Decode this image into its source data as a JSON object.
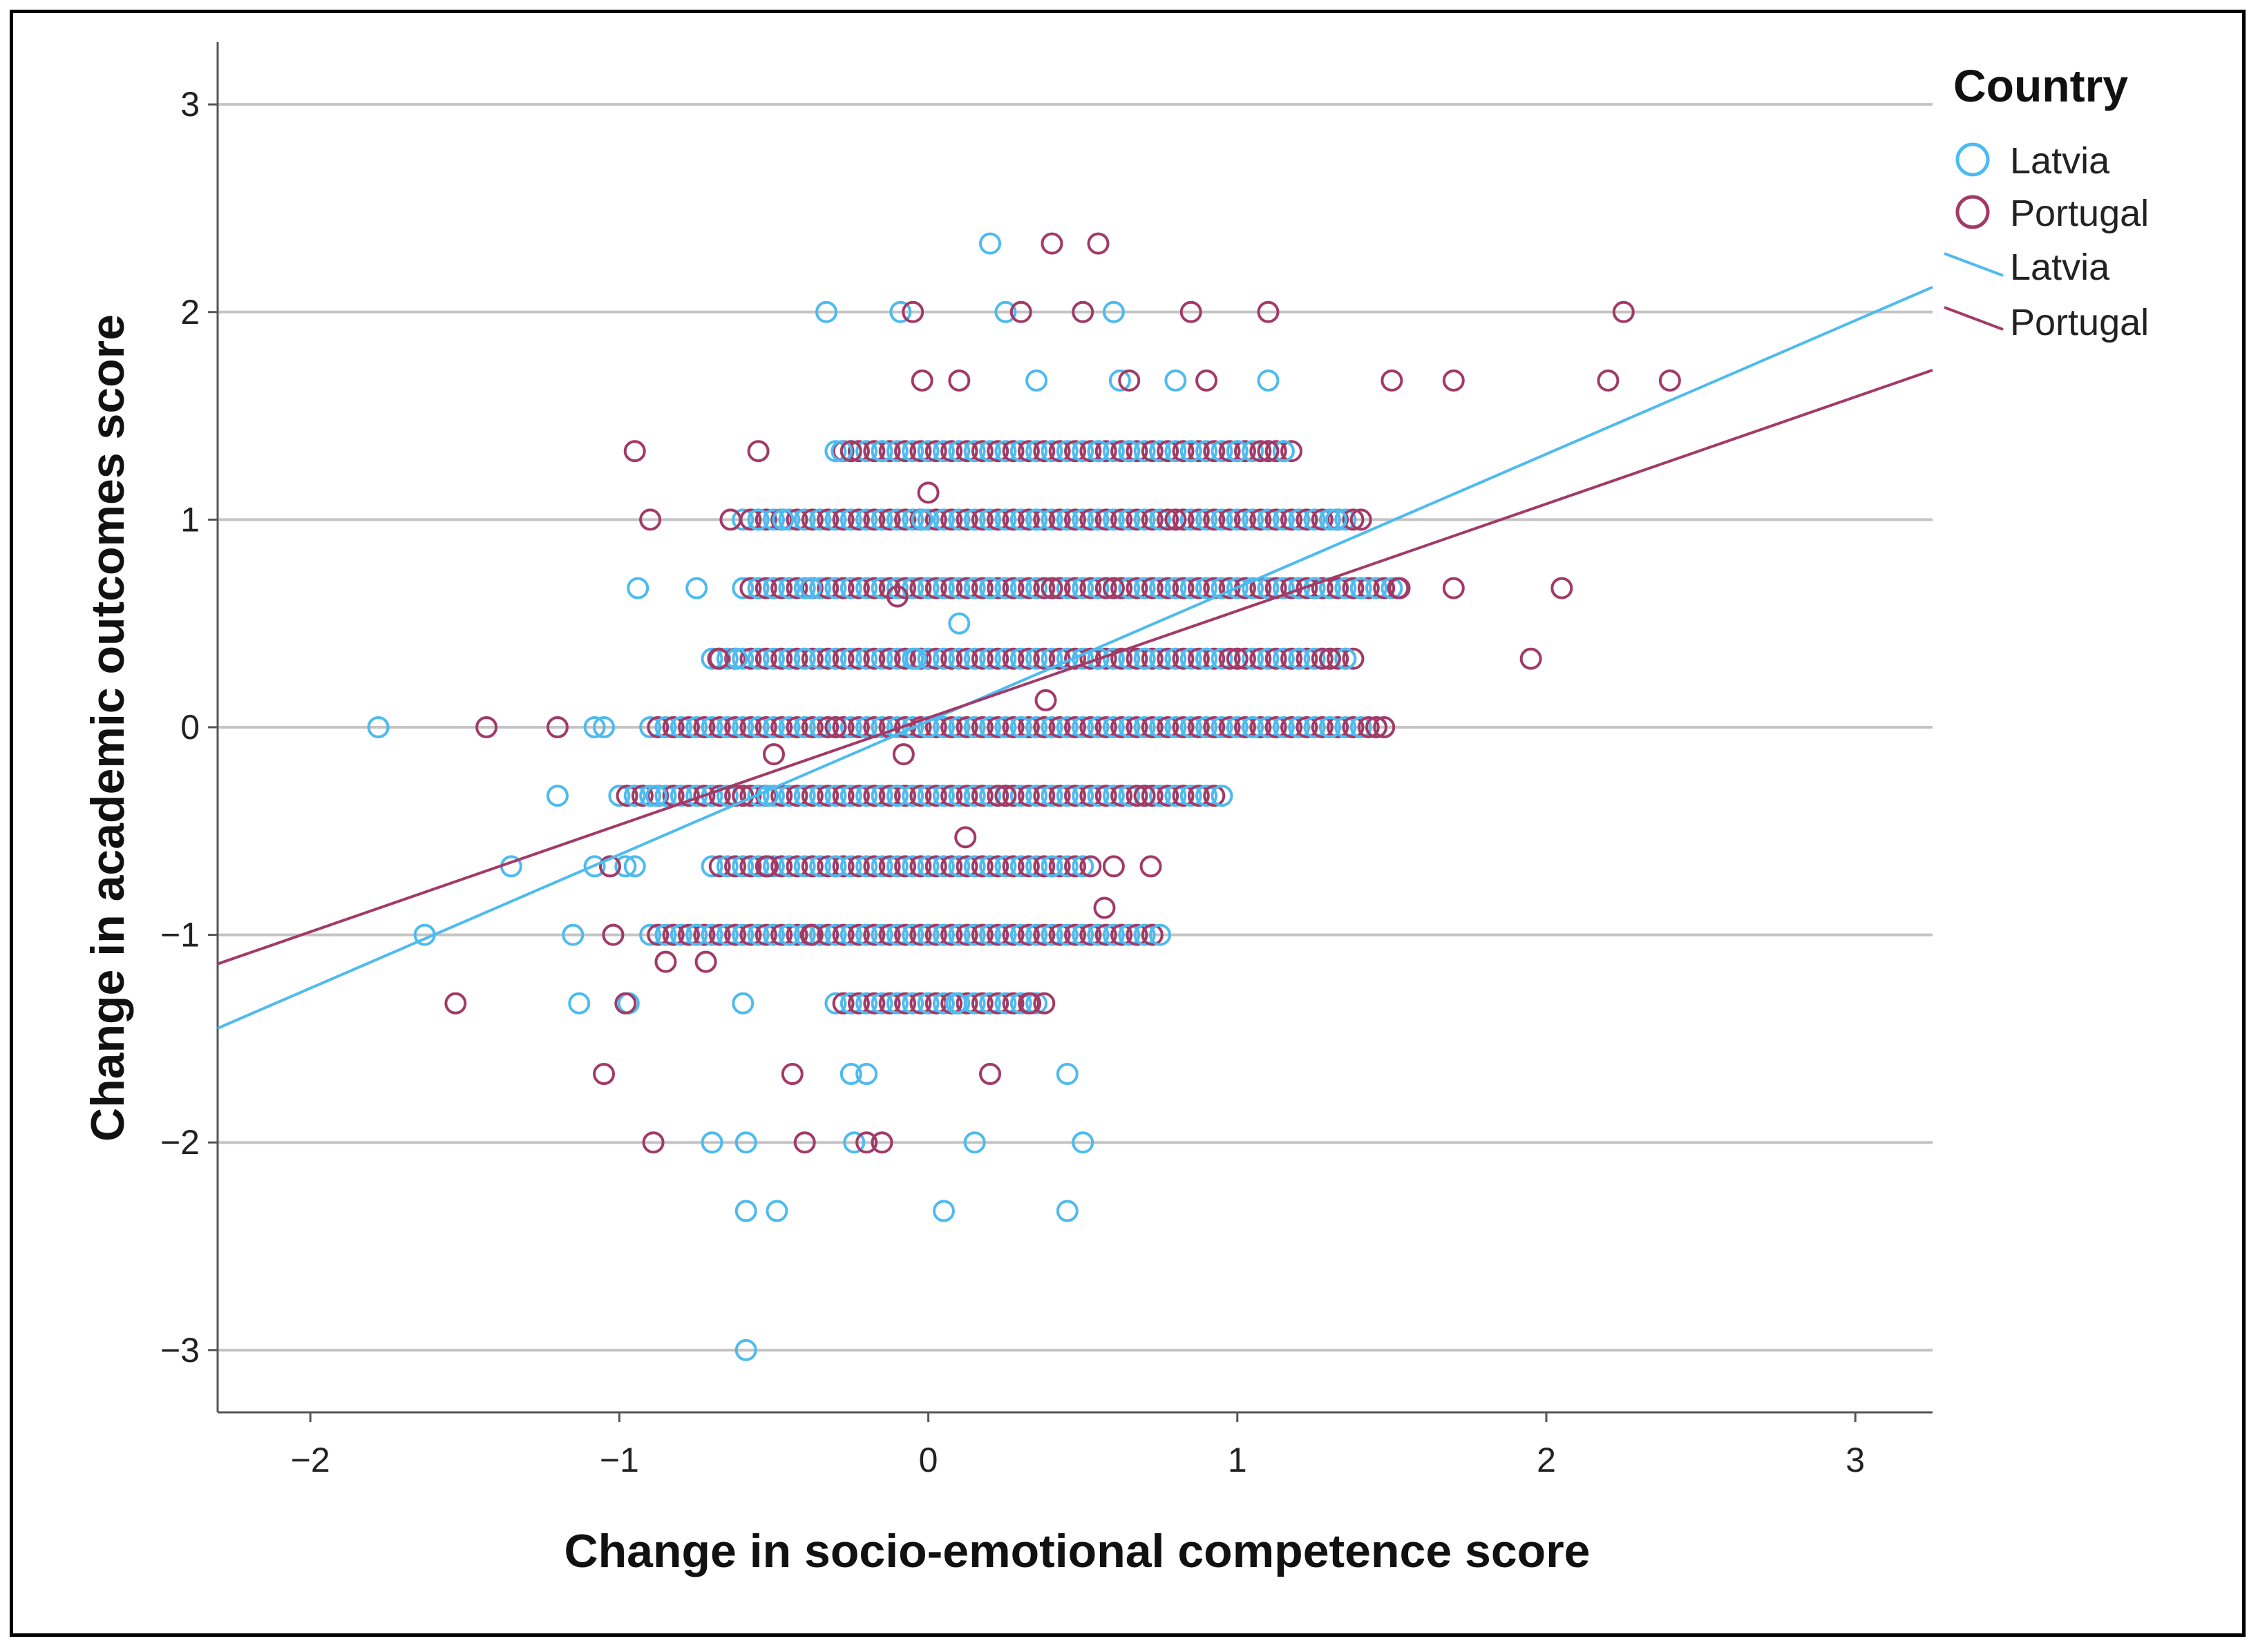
{
  "chart_data": {
    "type": "scatter",
    "title": "",
    "xlabel": "Change in socio-emotional competence score",
    "ylabel": "Change in academic outcomes score",
    "xlim": [
      -2.3,
      3.25
    ],
    "ylim": [
      -3.3,
      3.3
    ],
    "xticks": [
      -2,
      -1,
      0,
      1,
      2,
      3
    ],
    "yticks": [
      -3,
      -2,
      -1,
      0,
      1,
      2,
      3
    ],
    "tick_labels_x": [
      "−2",
      "−1",
      "0",
      "1",
      "2",
      "3"
    ],
    "tick_labels_y": [
      "−3",
      "−2",
      "−1",
      "0",
      "1",
      "2",
      "3"
    ],
    "grid": "horizontal",
    "legend": {
      "title": "Country",
      "position": "top-right",
      "entries": [
        "Latvia",
        "Portugal",
        "Latvia",
        "Portugal"
      ]
    },
    "colors": {
      "Latvia": "#4dbbef",
      "Portugal": "#a23a67"
    },
    "series": [
      {
        "name": "Latvia",
        "points": [
          [
            -1.78,
            0
          ],
          [
            -1.63,
            -1
          ],
          [
            -1.35,
            -0.67
          ],
          [
            -1.2,
            -0.33
          ],
          [
            -1.15,
            -1
          ],
          [
            -1.13,
            -1.33
          ],
          [
            -1.08,
            -0.67
          ],
          [
            -1.08,
            0
          ],
          [
            -1.05,
            0
          ],
          [
            -0.98,
            -0.67
          ],
          [
            -0.97,
            -1.33
          ],
          [
            -0.95,
            -0.67
          ],
          [
            -0.94,
            0.67
          ],
          [
            -0.88,
            -0.33
          ],
          [
            -0.75,
            0.67
          ],
          [
            -0.75,
            -1
          ],
          [
            -0.7,
            -2
          ],
          [
            -0.62,
            0.33
          ],
          [
            -0.6,
            -1.33
          ],
          [
            -0.59,
            -2
          ],
          [
            -0.59,
            -2.33
          ],
          [
            -0.59,
            -3
          ],
          [
            -0.55,
            1
          ],
          [
            -0.52,
            -0.33
          ],
          [
            -0.49,
            -2.33
          ],
          [
            -0.47,
            1
          ],
          [
            -0.45,
            -1
          ],
          [
            -0.38,
            0.67
          ],
          [
            -0.33,
            2
          ],
          [
            -0.3,
            -0.67
          ],
          [
            -0.28,
            1.33
          ],
          [
            -0.25,
            -1.67
          ],
          [
            -0.24,
            -2
          ],
          [
            -0.2,
            -1.67
          ],
          [
            -0.1,
            -0.33
          ],
          [
            -0.09,
            2
          ],
          [
            -0.04,
            0.33
          ],
          [
            -0.02,
            1
          ],
          [
            0.05,
            -2.33
          ],
          [
            0.09,
            -1.33
          ],
          [
            0.1,
            0.5
          ],
          [
            0.15,
            -2
          ],
          [
            0.2,
            2.33
          ],
          [
            0.25,
            2
          ],
          [
            0.3,
            0
          ],
          [
            0.35,
            1.67
          ],
          [
            0.4,
            -0.67
          ],
          [
            0.45,
            -1.67
          ],
          [
            0.45,
            -2.33
          ],
          [
            0.5,
            -2
          ],
          [
            0.55,
            1.33
          ],
          [
            0.6,
            2
          ],
          [
            0.62,
            1.67
          ],
          [
            0.65,
            1.33
          ],
          [
            0.7,
            0.33
          ],
          [
            0.75,
            -1
          ],
          [
            0.8,
            1.67
          ],
          [
            0.85,
            1.33
          ],
          [
            0.9,
            0.33
          ],
          [
            0.95,
            -0.33
          ],
          [
            1,
            1.33
          ],
          [
            1.05,
            0
          ],
          [
            1.1,
            1.67
          ],
          [
            1.15,
            1.33
          ],
          [
            1.2,
            0.33
          ],
          [
            1.25,
            0.67
          ],
          [
            1.3,
            0
          ],
          [
            1.32,
            1
          ],
          [
            1.35,
            0.33
          ],
          [
            1.4,
            0.67
          ],
          [
            0.2,
            0.67
          ],
          [
            0.0,
            0
          ],
          [
            -0.15,
            1.33
          ],
          [
            0.35,
            1.0
          ],
          [
            0.55,
            0.33
          ],
          [
            -0.4,
            0.33
          ]
        ]
      },
      {
        "name": "Portugal",
        "points": [
          [
            -1.53,
            -1.33
          ],
          [
            -1.43,
            0
          ],
          [
            -1.2,
            0
          ],
          [
            -1.05,
            -1.67
          ],
          [
            -1.03,
            -0.67
          ],
          [
            -1.02,
            -1
          ],
          [
            -0.98,
            -1.33
          ],
          [
            -0.95,
            1.33
          ],
          [
            -0.9,
            1
          ],
          [
            -0.89,
            -2
          ],
          [
            -0.85,
            -1.13
          ],
          [
            -0.72,
            -1.13
          ],
          [
            -0.68,
            0.33
          ],
          [
            -0.64,
            1
          ],
          [
            -0.55,
            1.33
          ],
          [
            -0.52,
            -0.67
          ],
          [
            -0.5,
            -0.13
          ],
          [
            -0.44,
            -1.67
          ],
          [
            -0.4,
            -2
          ],
          [
            -0.38,
            -1
          ],
          [
            -0.25,
            1.33
          ],
          [
            -0.2,
            -2
          ],
          [
            -0.15,
            -2
          ],
          [
            -0.1,
            0.63
          ],
          [
            -0.08,
            -0.13
          ],
          [
            -0.05,
            2
          ],
          [
            -0.02,
            1.67
          ],
          [
            0,
            1.13
          ],
          [
            0.1,
            1.67
          ],
          [
            0.12,
            -0.53
          ],
          [
            0.2,
            -1.67
          ],
          [
            0.3,
            2
          ],
          [
            0.33,
            -1.33
          ],
          [
            0.38,
            0.13
          ],
          [
            0.4,
            2.33
          ],
          [
            0.5,
            2
          ],
          [
            0.55,
            2.33
          ],
          [
            0.57,
            -0.87
          ],
          [
            0.6,
            -0.67
          ],
          [
            0.65,
            1.67
          ],
          [
            0.7,
            -0.33
          ],
          [
            0.72,
            -0.67
          ],
          [
            0.85,
            2
          ],
          [
            0.9,
            1.67
          ],
          [
            1.0,
            0.33
          ],
          [
            1.1,
            2
          ],
          [
            1.1,
            1.33
          ],
          [
            1.3,
            0.33
          ],
          [
            1.45,
            0
          ],
          [
            1.5,
            1.67
          ],
          [
            1.52,
            0.67
          ],
          [
            1.7,
            1.67
          ],
          [
            1.7,
            0.67
          ],
          [
            1.95,
            0.33
          ],
          [
            2.05,
            0.67
          ],
          [
            2.2,
            1.67
          ],
          [
            2.25,
            2
          ],
          [
            2.4,
            1.67
          ],
          [
            1.4,
            1
          ],
          [
            -0.3,
            0
          ],
          [
            0.4,
            0.67
          ],
          [
            0.8,
            1
          ],
          [
            -0.6,
            -0.33
          ],
          [
            0.25,
            -0.33
          ],
          [
            0.6,
            0.67
          ]
        ]
      }
    ],
    "band_rows": [
      {
        "y": 1.33,
        "x_from": -0.3,
        "x_to": 1.15
      },
      {
        "y": 1.0,
        "x_from": -0.6,
        "x_to": 1.35
      },
      {
        "y": 0.67,
        "x_from": -0.6,
        "x_to": 1.5
      },
      {
        "y": 0.33,
        "x_from": -0.7,
        "x_to": 1.35
      },
      {
        "y": 0.0,
        "x_from": -0.9,
        "x_to": 1.45
      },
      {
        "y": -0.33,
        "x_from": -1.0,
        "x_to": 0.9
      },
      {
        "y": -0.67,
        "x_from": -0.7,
        "x_to": 0.5
      },
      {
        "y": -1.0,
        "x_from": -0.9,
        "x_to": 0.7
      },
      {
        "y": -1.33,
        "x_from": -0.3,
        "x_to": 0.35
      }
    ],
    "fit_lines": [
      {
        "name": "Latvia",
        "x": [
          -2.3,
          3.25
        ],
        "y": [
          -1.45,
          2.12
        ]
      },
      {
        "name": "Portugal",
        "x": [
          -2.3,
          3.25
        ],
        "y": [
          -1.14,
          1.72
        ]
      }
    ]
  }
}
